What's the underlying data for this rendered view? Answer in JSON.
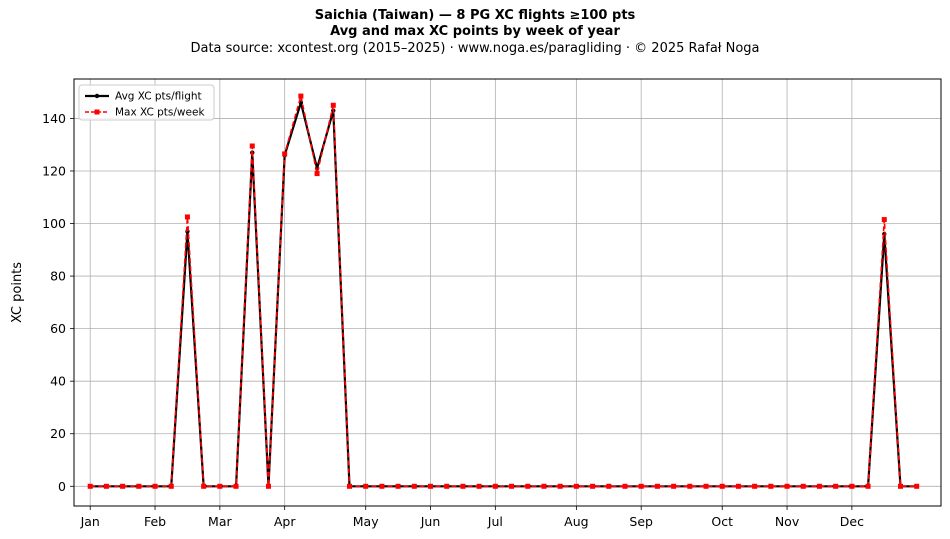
{
  "chart_data": {
    "type": "line",
    "title": "Saichia (Taiwan)  —  8 PG XC flights ≥100 pts",
    "subtitle": "Avg and max XC points by week of year",
    "source_line": "Data source: xcontest.org (2015–2025)  ·  www.noga.es/paragliding  ·  © 2025 Rafał Noga",
    "xlabel": "",
    "ylabel": "XC points",
    "xlim": [
      0,
      53.5
    ],
    "ylim": [
      -7.5,
      155
    ],
    "yticks": [
      0,
      20,
      40,
      60,
      80,
      100,
      120,
      140
    ],
    "xticks": [
      {
        "label": "Jan",
        "x": 1
      },
      {
        "label": "Feb",
        "x": 5
      },
      {
        "label": "Mar",
        "x": 9
      },
      {
        "label": "Apr",
        "x": 13
      },
      {
        "label": "May",
        "x": 18
      },
      {
        "label": "Jun",
        "x": 22
      },
      {
        "label": "Jul",
        "x": 26
      },
      {
        "label": "Aug",
        "x": 31
      },
      {
        "label": "Sep",
        "x": 35
      },
      {
        "label": "Oct",
        "x": 40
      },
      {
        "label": "Nov",
        "x": 44
      },
      {
        "label": "Dec",
        "x": 48
      }
    ],
    "grid": true,
    "legend_position": "top-left",
    "x": [
      1,
      2,
      3,
      4,
      5,
      6,
      7,
      8,
      9,
      10,
      11,
      12,
      13,
      14,
      15,
      16,
      17,
      18,
      19,
      20,
      21,
      22,
      23,
      24,
      25,
      26,
      27,
      28,
      29,
      30,
      31,
      32,
      33,
      34,
      35,
      36,
      37,
      38,
      39,
      40,
      41,
      42,
      43,
      44,
      45,
      46,
      47,
      48,
      49,
      50,
      51,
      52
    ],
    "series": [
      {
        "name": "Avg XC pts/flight",
        "color": "#000000",
        "style": "solid",
        "marker": "circle",
        "values": [
          0,
          0,
          0,
          0,
          0,
          0,
          97,
          0,
          0,
          0,
          127,
          0,
          126,
          146,
          121,
          143,
          0,
          0,
          0,
          0,
          0,
          0,
          0,
          0,
          0,
          0,
          0,
          0,
          0,
          0,
          0,
          0,
          0,
          0,
          0,
          0,
          0,
          0,
          0,
          0,
          0,
          0,
          0,
          0,
          0,
          0,
          0,
          0,
          0,
          96,
          0,
          0
        ]
      },
      {
        "name": "Max XC pts/week",
        "color": "#ff0000",
        "style": "dashed",
        "marker": "square",
        "values": [
          0,
          0,
          0,
          0,
          0,
          0,
          102.5,
          0,
          0,
          0,
          129.5,
          0,
          126.5,
          148.5,
          119,
          145,
          0,
          0,
          0,
          0,
          0,
          0,
          0,
          0,
          0,
          0,
          0,
          0,
          0,
          0,
          0,
          0,
          0,
          0,
          0,
          0,
          0,
          0,
          0,
          0,
          0,
          0,
          0,
          0,
          0,
          0,
          0,
          0,
          0,
          101.5,
          0,
          0
        ]
      }
    ]
  }
}
